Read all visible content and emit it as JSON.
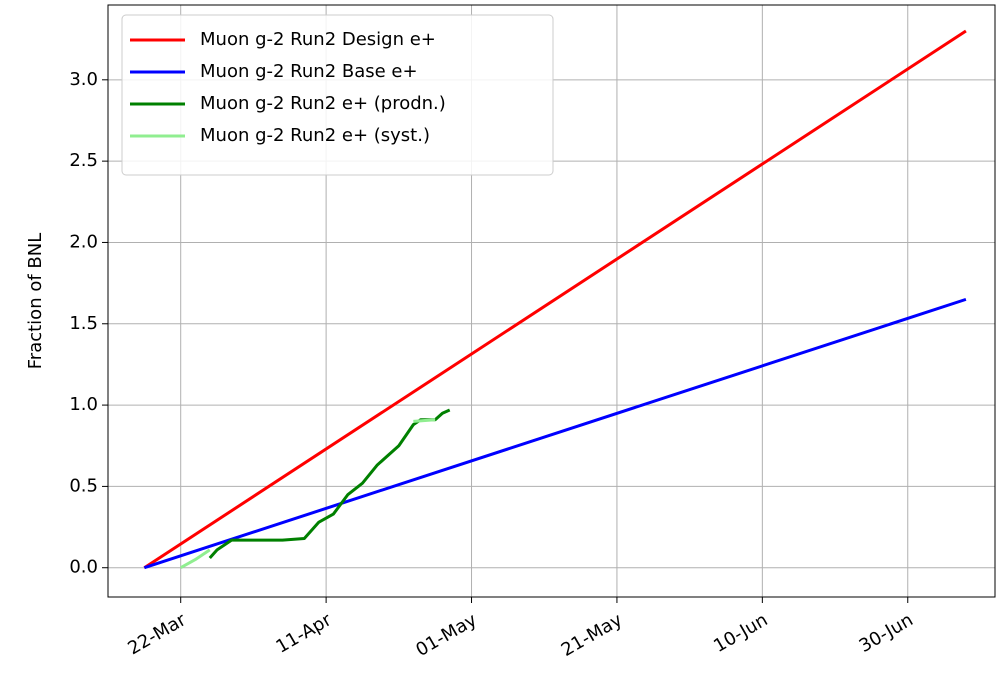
{
  "chart_data": {
    "type": "line",
    "ylabel": "Fraction of BNL",
    "xlim": [
      "03-12",
      "07-12"
    ],
    "xticks": [
      {
        "value": "03-22",
        "label": "22-Mar"
      },
      {
        "value": "04-11",
        "label": "11-Apr"
      },
      {
        "value": "05-01",
        "label": "01-May"
      },
      {
        "value": "05-21",
        "label": "21-May"
      },
      {
        "value": "06-10",
        "label": "10-Jun"
      },
      {
        "value": "06-30",
        "label": "30-Jun"
      }
    ],
    "ylim": [
      -0.18,
      3.46
    ],
    "yticks": [
      {
        "value": 0,
        "label": "0.0"
      },
      {
        "value": 0.5,
        "label": "0.5"
      },
      {
        "value": 1,
        "label": "1.0"
      },
      {
        "value": 1.5,
        "label": "1.5"
      },
      {
        "value": 2,
        "label": "2.0"
      },
      {
        "value": 2.5,
        "label": "2.5"
      },
      {
        "value": 3,
        "label": "3.0"
      }
    ],
    "grid": true,
    "legend": "upper left",
    "series": [
      {
        "name": "Muon g-2 Run2 Design e+",
        "color": "#ff0000",
        "x": [
          "03-17",
          "07-08"
        ],
        "values": [
          0,
          3.3
        ]
      },
      {
        "name": "Muon g-2 Run2 Base e+",
        "color": "#0000ff",
        "x": [
          "03-17",
          "07-08"
        ],
        "values": [
          0,
          1.65
        ]
      },
      {
        "name": "Muon g-2 Run2 e+ (prodn.)",
        "color": "#008000",
        "x": [
          "03-26",
          "03-27",
          "03-29",
          "03-31",
          "04-05",
          "04-08",
          "04-10",
          "04-12",
          "04-14",
          "04-16",
          "04-18",
          "04-21",
          "04-23",
          "04-24",
          "04-26",
          "04-27",
          "04-28"
        ],
        "values": [
          0.06,
          0.11,
          0.17,
          0.17,
          0.17,
          0.18,
          0.28,
          0.33,
          0.45,
          0.52,
          0.63,
          0.75,
          0.88,
          0.91,
          0.91,
          0.95,
          0.97
        ]
      },
      {
        "name": "Muon g-2 Run2 e+ (syst.)",
        "color": "#90ee90",
        "x": [
          "03-22",
          "03-24",
          "03-26",
          "04-21",
          "04-23",
          "04-26"
        ],
        "values": [
          0,
          0.05,
          0.11,
          null,
          0.9,
          0.91
        ]
      }
    ]
  }
}
